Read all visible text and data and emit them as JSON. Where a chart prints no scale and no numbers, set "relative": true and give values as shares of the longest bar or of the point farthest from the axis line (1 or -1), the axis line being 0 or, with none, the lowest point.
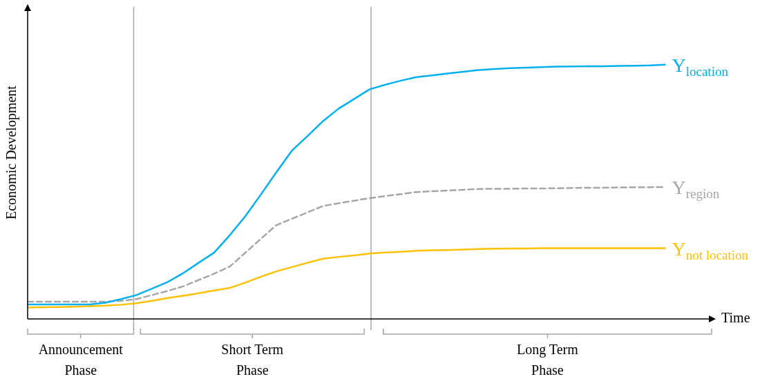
{
  "chart_data": {
    "type": "line",
    "relative": true,
    "xlabel": "Time",
    "ylabel": "Economic Development",
    "legend": false,
    "marker": "none",
    "categories": [
      null,
      null,
      null,
      null,
      null,
      null,
      null,
      null,
      null,
      null,
      null,
      null,
      null,
      null,
      null,
      null,
      null,
      null,
      null,
      null,
      null,
      null,
      null,
      null,
      null,
      null,
      null,
      null,
      null,
      null,
      null,
      null,
      null,
      null,
      null,
      null,
      null,
      null,
      null,
      null,
      null,
      null,
      null,
      null,
      null
    ],
    "series": [
      {
        "name": "Y$_{location}$",
        "color": "#00b0f0",
        "line_style": "solid",
        "values": [
          0.057,
          0.057,
          0.057,
          0.057,
          0.057,
          0.064,
          0.078,
          0.094,
          0.119,
          0.145,
          0.18,
          0.221,
          0.261,
          0.329,
          0.404,
          0.489,
          0.577,
          0.662,
          0.719,
          0.778,
          0.827,
          0.865,
          0.903,
          0.921,
          0.937,
          0.951,
          0.958,
          0.965,
          0.972,
          0.979,
          0.983,
          0.986,
          0.988,
          0.99,
          0.992,
          0.993,
          0.994,
          0.994,
          0.995,
          0.996,
          0.997,
          1.0,
          null,
          null,
          null
        ]
      },
      {
        "name": "Y$_{region}$",
        "color": "#a6a6a6",
        "line_style": "dashed",
        "values": [
          0.068,
          0.068,
          0.068,
          0.068,
          0.068,
          0.068,
          0.071,
          0.078,
          0.094,
          0.11,
          0.128,
          0.153,
          0.178,
          0.206,
          0.26,
          0.315,
          0.369,
          0.394,
          0.419,
          0.444,
          0.455,
          0.465,
          0.475,
          0.483,
          0.491,
          0.499,
          0.502,
          0.505,
          0.508,
          0.511,
          0.512,
          0.512,
          0.513,
          0.513,
          0.514,
          0.515,
          0.516,
          0.516,
          0.517,
          0.518,
          0.518,
          0.519,
          null,
          null,
          null
        ]
      },
      {
        "name": "Y$_{not location}$",
        "color": "#ffc000",
        "line_style": "solid",
        "values": [
          0.045,
          0.046,
          0.047,
          0.048,
          0.05,
          0.052,
          0.056,
          0.062,
          0.071,
          0.082,
          0.091,
          0.101,
          0.112,
          0.122,
          0.143,
          0.166,
          0.187,
          0.204,
          0.221,
          0.237,
          0.244,
          0.25,
          0.257,
          0.261,
          0.264,
          0.268,
          0.27,
          0.271,
          0.273,
          0.275,
          0.276,
          0.277,
          0.277,
          0.278,
          0.278,
          0.278,
          0.278,
          0.278,
          0.278,
          0.278,
          0.278,
          0.278,
          null,
          null,
          null
        ]
      }
    ],
    "annotations": [
      "Announcement Phase",
      "Short Term Phase",
      "Long Term Phase"
    ]
  }
}
